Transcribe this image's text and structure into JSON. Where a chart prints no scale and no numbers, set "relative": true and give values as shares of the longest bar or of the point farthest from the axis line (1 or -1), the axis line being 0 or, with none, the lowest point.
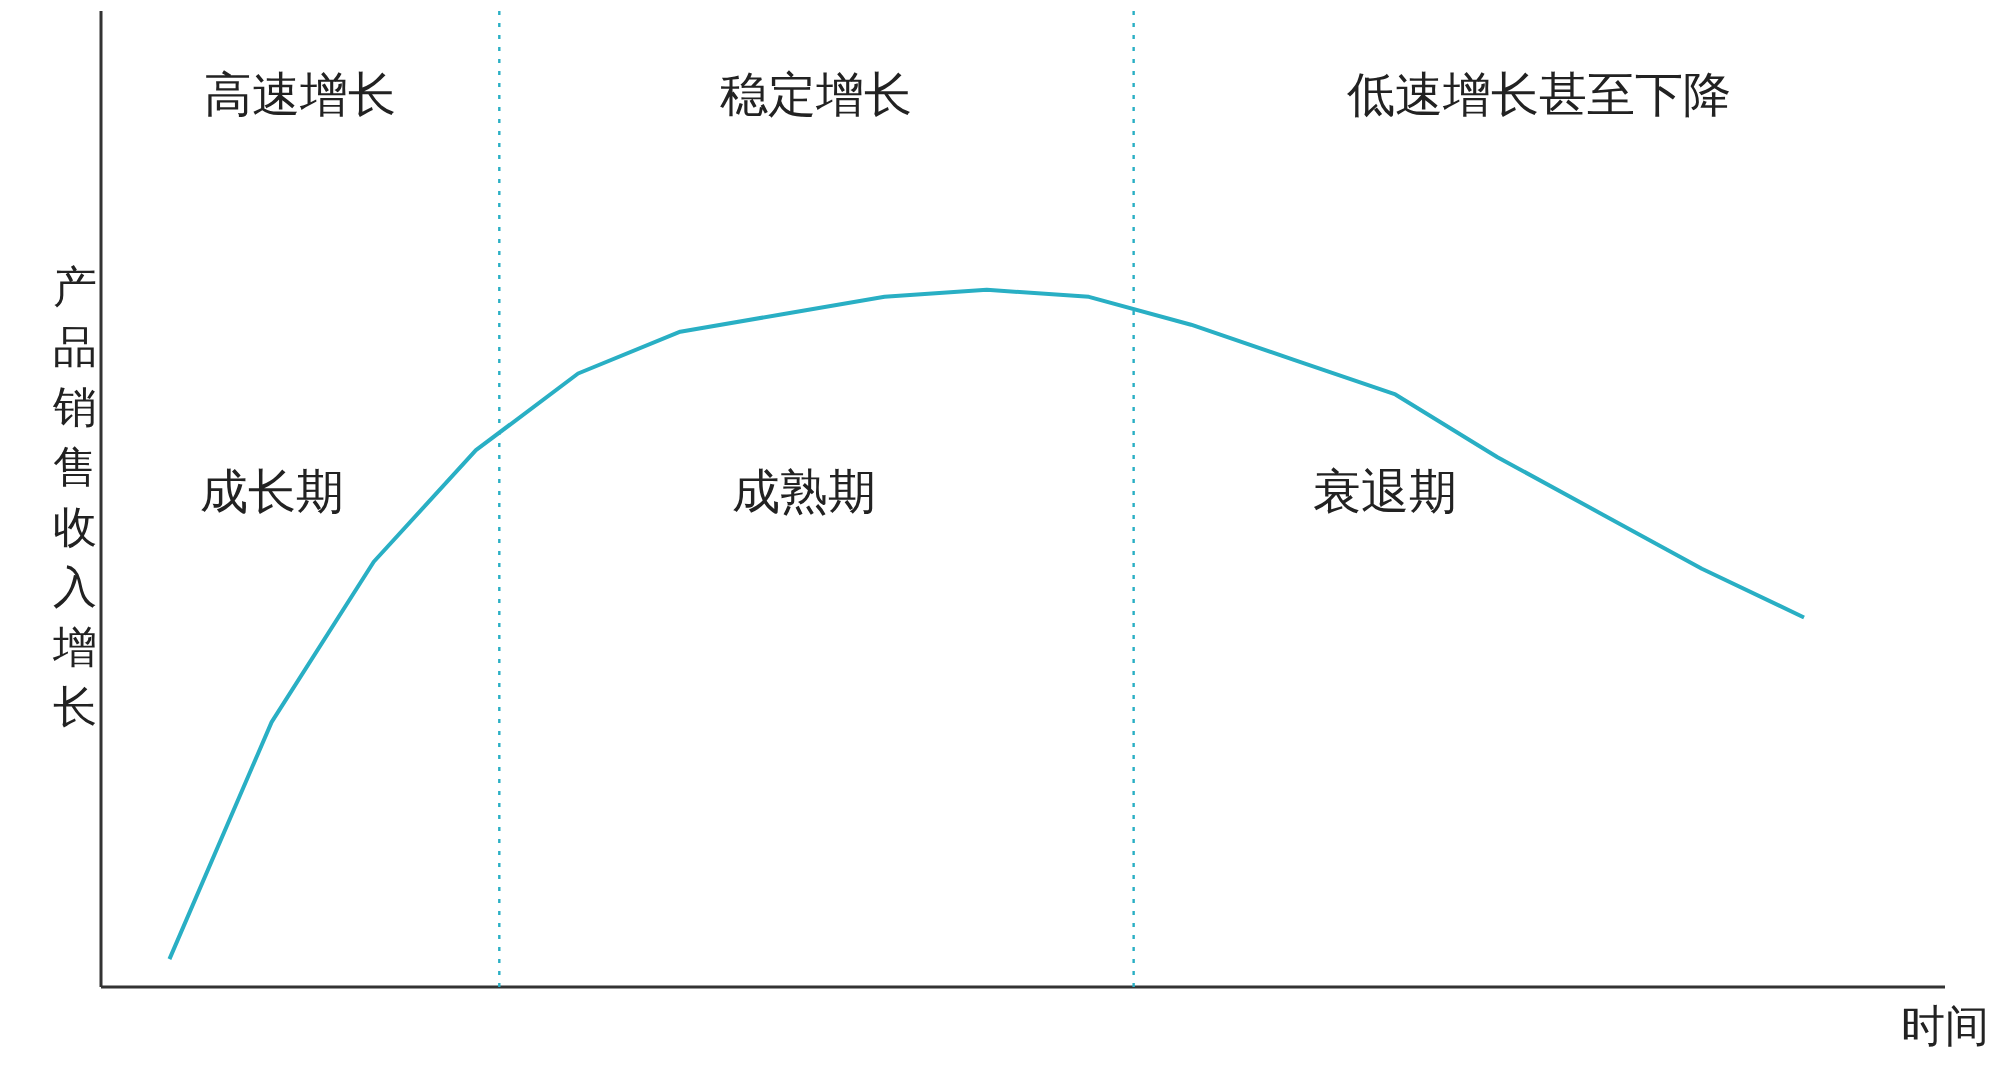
{
  "chart_data": {
    "type": "line",
    "relative": true,
    "xlabel": "时间",
    "ylabel": "产品销售收入增长",
    "categories": [
      null,
      null,
      null,
      null,
      null,
      null,
      null,
      null,
      null,
      null,
      null,
      null,
      null,
      null,
      null,
      null,
      null
    ],
    "series": [
      {
        "color": "#29afc4",
        "values": [
          0.04,
          0.38,
          0.61,
          0.77,
          0.88,
          0.94,
          0.965,
          0.99,
          1.0,
          0.99,
          0.95,
          0.9,
          0.85,
          0.76,
          0.68,
          0.6,
          0.53
        ]
      }
    ],
    "annotations": [
      "高速增长",
      "稳定增长",
      "低速增长甚至下降",
      "成长期",
      "成熟期",
      "衰退期"
    ],
    "marker": "none",
    "line_style": "solid"
  }
}
